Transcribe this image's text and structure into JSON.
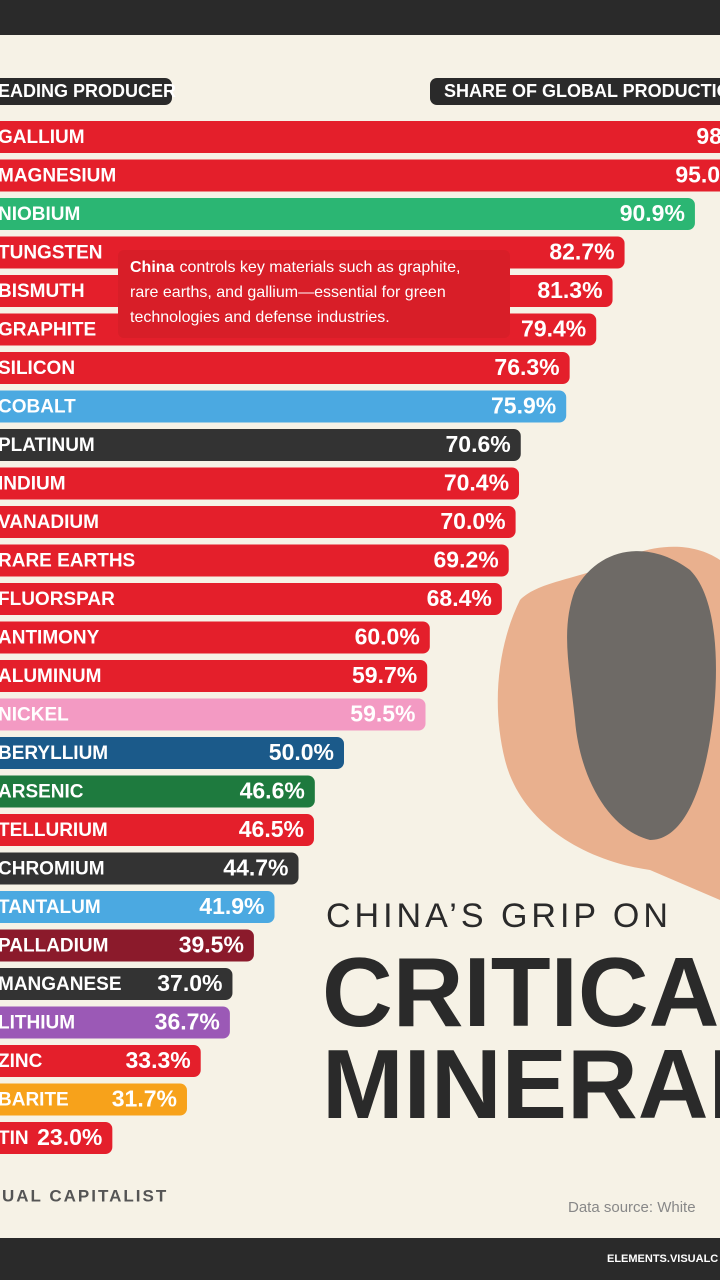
{
  "chart_data": {
    "type": "bar",
    "orientation": "horizontal",
    "title": "CHINA’S GRIP ON",
    "title_lines": [
      "CRITICAL",
      "MINERALS"
    ],
    "header_left": "EADING PRODUCER",
    "header_right": "SHARE OF GLOBAL PRODUCTIO",
    "annotation": {
      "lead": "China",
      "lines": [
        "controls key materials such as graphite,",
        "rare earths, and gallium—essential for green",
        "technologies and defense industries."
      ]
    },
    "categories": [
      "GALLIUM",
      "MAGNESIUM",
      "NIOBIUM",
      "TUNGSTEN",
      "BISMUTH",
      "GRAPHITE",
      "SILICON",
      "COBALT",
      "PLATINUM",
      "INDIUM",
      "VANADIUM",
      "RARE EARTHS",
      "FLUORSPAR",
      "ANTIMONY",
      "ALUMINUM",
      "NICKEL",
      "BERYLLIUM",
      "ARSENIC",
      "TELLURIUM",
      "CHROMIUM",
      "TANTALUM",
      "PALLADIUM",
      "MANGANESE",
      "LITHIUM",
      "ZINC",
      "BARITE",
      "TIN"
    ],
    "values": [
      98,
      95.0,
      90.9,
      82.7,
      81.3,
      79.4,
      76.3,
      75.9,
      70.6,
      70.4,
      70.0,
      69.2,
      68.4,
      60.0,
      59.7,
      59.5,
      50.0,
      46.6,
      46.5,
      44.7,
      41.9,
      39.5,
      37.0,
      36.7,
      33.3,
      31.7,
      23.0
    ],
    "value_labels": [
      "98",
      "95.0",
      "90.9%",
      "82.7%",
      "81.3%",
      "79.4%",
      "76.3%",
      "75.9%",
      "70.6%",
      "70.4%",
      "70.0%",
      "69.2%",
      "68.4%",
      "60.0%",
      "59.7%",
      "59.5%",
      "50.0%",
      "46.6%",
      "46.5%",
      "44.7%",
      "41.9%",
      "39.5%",
      "37.0%",
      "36.7%",
      "33.3%",
      "31.7%",
      "23.0%"
    ],
    "colors": [
      "#e41f2b",
      "#e41f2b",
      "#2bb673",
      "#e41f2b",
      "#e41f2b",
      "#e41f2b",
      "#e41f2b",
      "#4ba9e1",
      "#333333",
      "#e41f2b",
      "#e41f2b",
      "#e41f2b",
      "#e41f2b",
      "#e41f2b",
      "#e41f2b",
      "#f39ac3",
      "#1b5a8a",
      "#1e7a3e",
      "#e41f2b",
      "#333333",
      "#4ba9e1",
      "#8b1a2b",
      "#333333",
      "#9b59b6",
      "#e41f2b",
      "#f7a21b",
      "#e41f2b"
    ],
    "footer_left": "UAL CAPITALIST",
    "source": "Data source: White",
    "footer_right": "ELEMENTS.VISUALC"
  }
}
